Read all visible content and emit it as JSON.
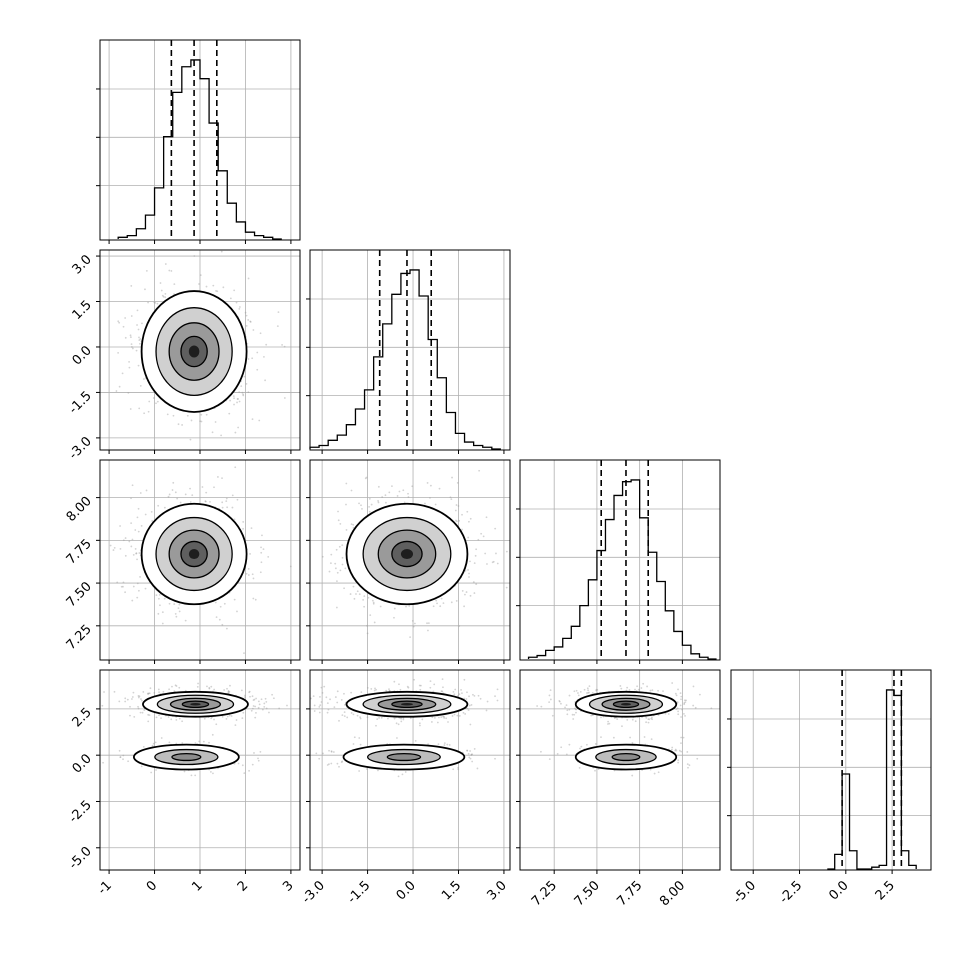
{
  "chart_data": {
    "type": "corner",
    "title": "",
    "grid": true,
    "parameters": [
      {
        "range": [
          -1.2,
          3.2
        ],
        "ticks": [
          -1,
          0,
          1,
          2,
          3
        ],
        "tick_labels": [
          "-1",
          "0",
          "1",
          "2",
          "3"
        ],
        "quantiles": [
          0.37,
          0.87,
          1.37
        ],
        "histogram": {
          "edges": [
            -0.8,
            -0.6,
            -0.4,
            -0.2,
            0.0,
            0.2,
            0.4,
            0.6,
            0.8,
            1.0,
            1.2,
            1.4,
            1.6,
            1.8,
            2.0,
            2.2,
            2.4,
            2.6,
            2.8
          ],
          "counts": [
            1,
            2,
            6,
            14,
            30,
            60,
            86,
            101,
            105,
            94,
            68,
            40,
            21,
            10,
            4,
            2,
            1,
            0
          ]
        }
      },
      {
        "range": [
          -3.4,
          3.2
        ],
        "ticks": [
          -3.0,
          -1.5,
          0.0,
          1.5,
          3.0
        ],
        "tick_labels": [
          "-3.0",
          "-1.5",
          "0.0",
          "1.5",
          "3.0"
        ],
        "quantiles": [
          -1.1,
          -0.2,
          0.6
        ],
        "histogram": {
          "edges": [
            -3.4,
            -3.1,
            -2.8,
            -2.5,
            -2.2,
            -1.9,
            -1.6,
            -1.3,
            -1.0,
            -0.7,
            -0.4,
            -0.1,
            0.2,
            0.5,
            0.8,
            1.1,
            1.4,
            1.7,
            2.0,
            2.3,
            2.6,
            2.9
          ],
          "counts": [
            1,
            2,
            5,
            8,
            14,
            23,
            34,
            53,
            72,
            89,
            101,
            103,
            88,
            63,
            41,
            21,
            9,
            4,
            2,
            1,
            0
          ]
        }
      },
      {
        "range": [
          7.05,
          8.22
        ],
        "ticks": [
          7.25,
          7.5,
          7.75,
          8.0
        ],
        "tick_labels": [
          "7.25",
          "7.50",
          "7.75",
          "8.00"
        ],
        "quantiles": [
          7.525,
          7.67,
          7.8
        ],
        "histogram": {
          "edges": [
            7.1,
            7.15,
            7.2,
            7.25,
            7.3,
            7.35,
            7.4,
            7.45,
            7.5,
            7.55,
            7.6,
            7.65,
            7.7,
            7.75,
            7.8,
            7.85,
            7.9,
            7.95,
            8.0,
            8.05,
            8.1,
            8.15,
            8.2
          ],
          "counts": [
            1,
            2,
            5,
            7,
            12,
            19,
            31,
            46,
            63,
            81,
            95,
            103,
            104,
            82,
            62,
            45,
            28,
            16,
            8,
            3,
            1,
            0
          ]
        }
      },
      {
        "range": [
          -6.2,
          4.6
        ],
        "ticks": [
          -5.0,
          -2.5,
          0.0,
          2.5
        ],
        "tick_labels": [
          "-5.0",
          "-2.5",
          "0.0",
          "2.5"
        ],
        "quantiles": [
          -0.2,
          2.6,
          3.0
        ],
        "histogram": {
          "edges": [
            -1.0,
            -0.6,
            -0.2,
            0.2,
            0.6,
            1.0,
            1.4,
            1.8,
            2.2,
            2.6,
            3.0,
            3.4,
            3.8
          ],
          "counts": [
            0,
            8,
            52,
            10,
            0,
            0,
            1,
            2,
            98,
            95,
            10,
            2
          ]
        }
      }
    ],
    "pairs": [
      {
        "row": 1,
        "col": 0,
        "x_center": 0.87,
        "y_center": -0.15,
        "x_spread": 0.55,
        "y_spread": 0.95,
        "clusters": [
          [
            0.87,
            -0.15
          ]
        ]
      },
      {
        "row": 2,
        "col": 0,
        "x_center": 0.87,
        "y_center": 7.67,
        "x_spread": 0.55,
        "y_spread": 0.14,
        "clusters": [
          [
            0.87,
            7.67
          ]
        ]
      },
      {
        "row": 2,
        "col": 1,
        "x_center": -0.2,
        "y_center": 7.67,
        "x_spread": 0.95,
        "y_spread": 0.14,
        "clusters": [
          [
            -0.2,
            7.67
          ]
        ]
      },
      {
        "row": 3,
        "col": 0,
        "x_center": 0.87,
        "y_center": 2.7,
        "x_spread": 0.55,
        "y_spread": 0.3,
        "clusters": [
          [
            0.9,
            2.75
          ],
          [
            0.7,
            -0.1
          ]
        ]
      },
      {
        "row": 3,
        "col": 1,
        "x_center": -0.2,
        "y_center": 2.7,
        "x_spread": 0.95,
        "y_spread": 0.3,
        "clusters": [
          [
            -0.2,
            2.75
          ],
          [
            -0.3,
            -0.1
          ]
        ]
      },
      {
        "row": 3,
        "col": 2,
        "x_center": 7.67,
        "y_center": 2.7,
        "x_spread": 0.14,
        "y_spread": 0.3,
        "clusters": [
          [
            7.67,
            2.75
          ],
          [
            7.67,
            -0.1
          ]
        ]
      }
    ]
  }
}
